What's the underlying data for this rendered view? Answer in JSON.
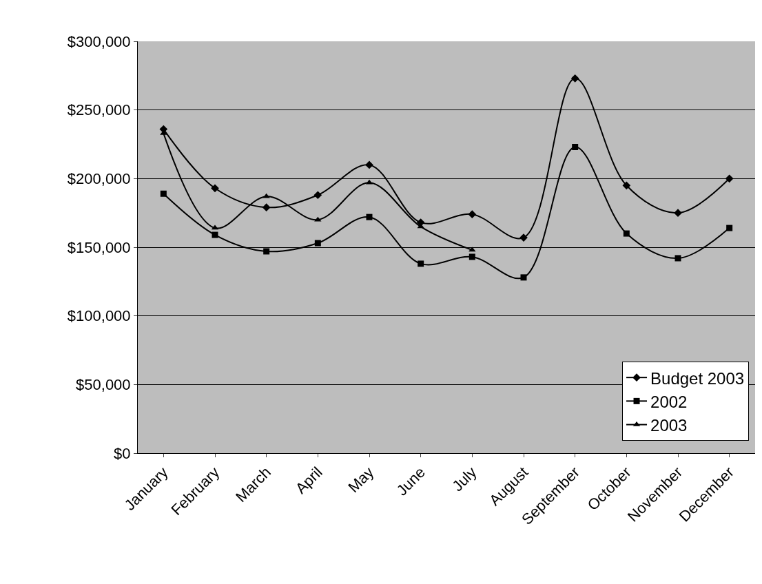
{
  "chart_data": {
    "type": "line",
    "categories": [
      "January",
      "February",
      "March",
      "April",
      "May",
      "June",
      "July",
      "August",
      "September",
      "October",
      "November",
      "December"
    ],
    "series": [
      {
        "name": "Budget 2003",
        "color": "#000000",
        "marker": "diamond",
        "values": [
          236000,
          193000,
          179000,
          188000,
          210000,
          168000,
          174000,
          157000,
          273000,
          195000,
          175000,
          200000
        ]
      },
      {
        "name": "2002",
        "color": "#000000",
        "marker": "square",
        "values": [
          189000,
          159000,
          147000,
          153000,
          172000,
          138000,
          143000,
          128000,
          223000,
          160000,
          142000,
          164000
        ]
      },
      {
        "name": "2003",
        "color": "#000000",
        "marker": "triangle",
        "values": [
          233000,
          164000,
          187000,
          170000,
          197000,
          165000,
          148000,
          null,
          null,
          null,
          null,
          null
        ]
      }
    ],
    "ylim": [
      0,
      300000
    ],
    "yticks": [
      {
        "value": 0,
        "label": "$0"
      },
      {
        "value": 50000,
        "label": "$50,000"
      },
      {
        "value": 100000,
        "label": "$100,000"
      },
      {
        "value": 150000,
        "label": "$150,000"
      },
      {
        "value": 200000,
        "label": "$200,000"
      },
      {
        "value": 250000,
        "label": "$250,000"
      },
      {
        "value": 300000,
        "label": "$300,000"
      }
    ],
    "grid": "y",
    "legend": "bottom right",
    "line_style": "solid"
  }
}
